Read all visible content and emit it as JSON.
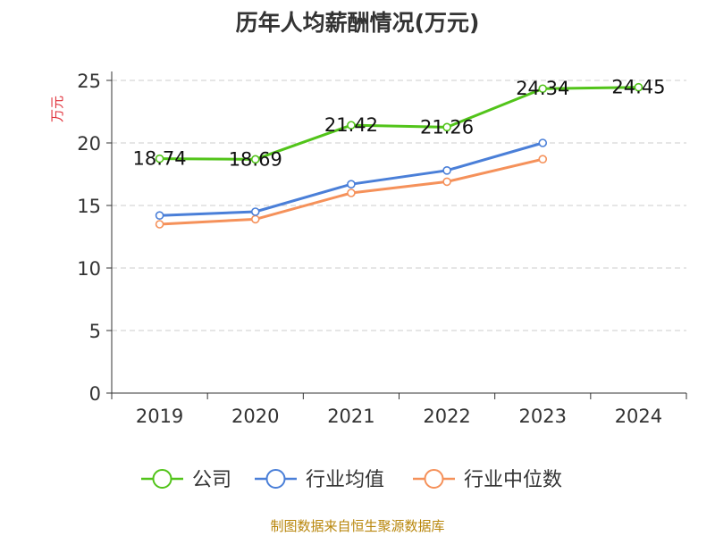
{
  "chart_data": {
    "type": "line",
    "title": "历年人均薪酬情况(万元)",
    "ylabel": "万元",
    "xlabel": "",
    "categories": [
      "2019",
      "2020",
      "2021",
      "2022",
      "2023",
      "2024"
    ],
    "ylim": [
      0,
      25
    ],
    "yticks": [
      0,
      5,
      10,
      15,
      20,
      25
    ],
    "grid": true,
    "legend_position": "bottom",
    "series": [
      {
        "name": "公司",
        "color": "#52c41a",
        "values": [
          18.74,
          18.69,
          21.42,
          21.26,
          24.34,
          24.45
        ],
        "show_labels": true
      },
      {
        "name": "行业均值",
        "color": "#4a7fd8",
        "values": [
          14.2,
          14.5,
          16.7,
          17.8,
          20.0,
          null
        ],
        "show_labels": false
      },
      {
        "name": "行业中位数",
        "color": "#f5915a",
        "values": [
          13.5,
          13.9,
          16.0,
          16.9,
          18.7,
          null
        ],
        "show_labels": false
      }
    ]
  },
  "footer": {
    "source": "制图数据来自恒生聚源数据库",
    "source_color": "#b8860b"
  },
  "colors": {
    "ylabel": "#e0313b",
    "axis": "#333333",
    "grid": "#cccccc"
  }
}
